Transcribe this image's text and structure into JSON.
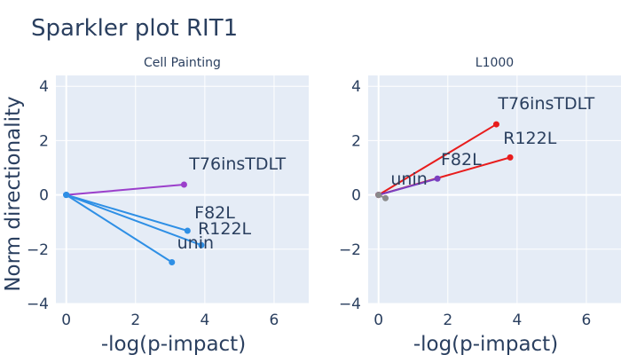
{
  "title": "Sparkler plot RIT1",
  "colors": {
    "plot_bg": "#e5ecf6",
    "grid": "#ffffff",
    "text": "#2a3f5f"
  },
  "chart_data": [
    {
      "type": "line",
      "subtitle": "Cell Painting",
      "xlabel": "-log(p-impact)",
      "ylabel": "Norm directionality",
      "xlim": [
        -0.3,
        7.0
      ],
      "ylim": [
        -4.0,
        4.4
      ],
      "xticks": [
        0,
        2,
        4,
        6
      ],
      "yticks": [
        -4,
        -2,
        0,
        2,
        4
      ],
      "grid": true,
      "series": [
        {
          "name": "T76insTDLT",
          "color": "#9b3fcb",
          "x": [
            0,
            3.4
          ],
          "y": [
            0,
            0.38
          ],
          "label_offset": [
            0.15,
            0.55
          ]
        },
        {
          "name": "F82L",
          "color": "#2e8fe5",
          "x": [
            0,
            3.5
          ],
          "y": [
            0,
            -1.32
          ],
          "label_offset": [
            0.2,
            0.45
          ]
        },
        {
          "name": "R122L",
          "color": "#2e8fe5",
          "x": [
            0,
            3.9
          ],
          "y": [
            0,
            -1.85
          ],
          "label_offset": [
            -0.1,
            0.4
          ]
        },
        {
          "name": "unin",
          "color": "#2e8fe5",
          "x": [
            0,
            3.05
          ],
          "y": [
            0,
            -2.48
          ],
          "label_offset": [
            0.15,
            0.5
          ]
        }
      ]
    },
    {
      "type": "line",
      "subtitle": "L1000",
      "xlabel": "-log(p-impact)",
      "ylabel": "",
      "xlim": [
        -0.3,
        7.0
      ],
      "ylim": [
        -4.0,
        4.4
      ],
      "xticks": [
        0,
        2,
        4,
        6
      ],
      "yticks": [
        -4,
        -2,
        0,
        2,
        4
      ],
      "grid": true,
      "series": [
        {
          "name": "T76insTDLT",
          "color": "#e81c1c",
          "x": [
            0,
            3.4
          ],
          "y": [
            0,
            2.6
          ],
          "label_offset": [
            0.05,
            0.55
          ]
        },
        {
          "name": "R122L",
          "color": "#e81c1c",
          "x": [
            0,
            3.8
          ],
          "y": [
            0,
            1.38
          ],
          "label_offset": [
            -0.2,
            0.5
          ]
        },
        {
          "name": "F82L",
          "color": "#7a3fc0",
          "x": [
            0,
            1.7
          ],
          "y": [
            0,
            0.6
          ],
          "label_offset": [
            0.1,
            0.5
          ]
        },
        {
          "name": "unin",
          "color": "#8a8a8a",
          "x": [
            0,
            0.2
          ],
          "y": [
            0,
            -0.12
          ],
          "label_offset": [
            0.15,
            0.5
          ]
        }
      ]
    }
  ]
}
